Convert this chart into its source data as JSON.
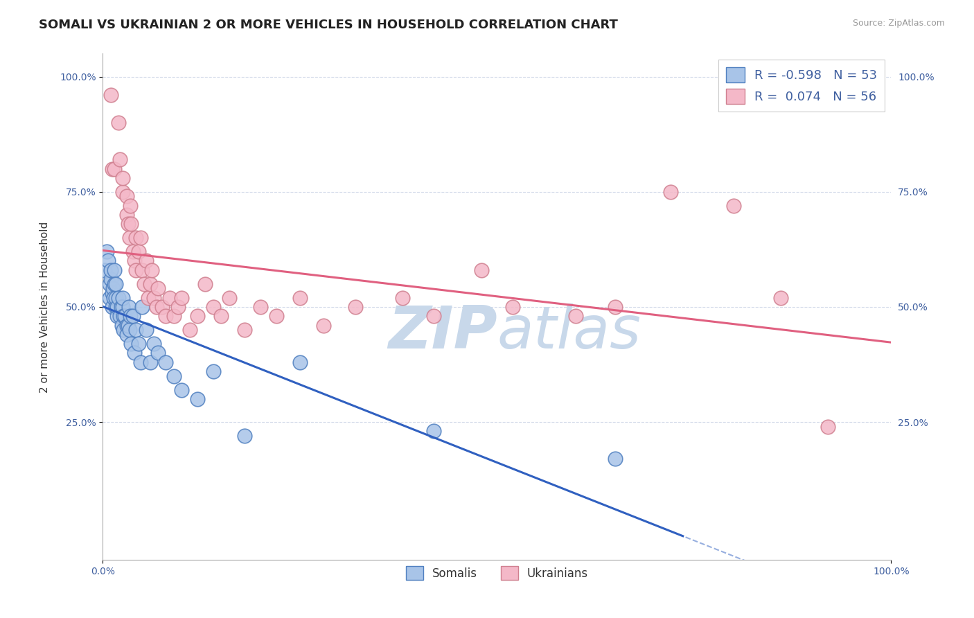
{
  "title": "SOMALI VS UKRAINIAN 2 OR MORE VEHICLES IN HOUSEHOLD CORRELATION CHART",
  "source": "Source: ZipAtlas.com",
  "ylabel": "2 or more Vehicles in Household",
  "xlim": [
    0,
    1.0
  ],
  "ylim": [
    -0.05,
    1.05
  ],
  "xtick_positions": [
    0.0,
    1.0
  ],
  "xtick_labels": [
    "0.0%",
    "100.0%"
  ],
  "ytick_positions": [
    0.25,
    0.5,
    0.75,
    1.0
  ],
  "ytick_labels": [
    "25.0%",
    "50.0%",
    "75.0%",
    "100.0%"
  ],
  "legend_blue_r": "-0.598",
  "legend_blue_n": "53",
  "legend_pink_r": "0.074",
  "legend_pink_n": "56",
  "blue_fill": "#a8c4e8",
  "blue_edge": "#5080c0",
  "pink_fill": "#f4b8c8",
  "pink_edge": "#d08090",
  "blue_line_color": "#3060c0",
  "pink_line_color": "#e06080",
  "watermark_color": "#c8d8ea",
  "background_color": "#ffffff",
  "grid_color": "#d0d8e8",
  "title_fontsize": 13,
  "axis_label_fontsize": 11,
  "tick_fontsize": 10,
  "somali_x": [
    0.002,
    0.005,
    0.007,
    0.008,
    0.008,
    0.01,
    0.01,
    0.012,
    0.012,
    0.013,
    0.014,
    0.015,
    0.015,
    0.016,
    0.016,
    0.016,
    0.018,
    0.018,
    0.02,
    0.022,
    0.023,
    0.024,
    0.025,
    0.025,
    0.026,
    0.026,
    0.028,
    0.03,
    0.03,
    0.032,
    0.033,
    0.034,
    0.035,
    0.036,
    0.038,
    0.04,
    0.042,
    0.045,
    0.048,
    0.05,
    0.055,
    0.06,
    0.065,
    0.07,
    0.08,
    0.09,
    0.1,
    0.12,
    0.14,
    0.18,
    0.25,
    0.42,
    0.65
  ],
  "somali_y": [
    0.58,
    0.62,
    0.6,
    0.55,
    0.52,
    0.56,
    0.58,
    0.53,
    0.5,
    0.54,
    0.52,
    0.58,
    0.55,
    0.5,
    0.52,
    0.55,
    0.48,
    0.5,
    0.52,
    0.48,
    0.5,
    0.46,
    0.5,
    0.52,
    0.48,
    0.45,
    0.48,
    0.46,
    0.44,
    0.46,
    0.5,
    0.45,
    0.48,
    0.42,
    0.48,
    0.4,
    0.45,
    0.42,
    0.38,
    0.5,
    0.45,
    0.38,
    0.42,
    0.4,
    0.38,
    0.35,
    0.32,
    0.3,
    0.36,
    0.22,
    0.38,
    0.23,
    0.17
  ],
  "ukrainian_x": [
    0.01,
    0.012,
    0.015,
    0.02,
    0.022,
    0.025,
    0.025,
    0.03,
    0.03,
    0.032,
    0.034,
    0.035,
    0.036,
    0.038,
    0.04,
    0.042,
    0.042,
    0.045,
    0.048,
    0.05,
    0.052,
    0.055,
    0.058,
    0.06,
    0.062,
    0.065,
    0.068,
    0.07,
    0.075,
    0.08,
    0.085,
    0.09,
    0.095,
    0.1,
    0.11,
    0.12,
    0.13,
    0.14,
    0.15,
    0.16,
    0.18,
    0.2,
    0.22,
    0.25,
    0.28,
    0.32,
    0.38,
    0.42,
    0.48,
    0.52,
    0.6,
    0.65,
    0.72,
    0.8,
    0.86,
    0.92
  ],
  "ukrainian_y": [
    0.96,
    0.8,
    0.8,
    0.9,
    0.82,
    0.75,
    0.78,
    0.7,
    0.74,
    0.68,
    0.65,
    0.72,
    0.68,
    0.62,
    0.6,
    0.65,
    0.58,
    0.62,
    0.65,
    0.58,
    0.55,
    0.6,
    0.52,
    0.55,
    0.58,
    0.52,
    0.5,
    0.54,
    0.5,
    0.48,
    0.52,
    0.48,
    0.5,
    0.52,
    0.45,
    0.48,
    0.55,
    0.5,
    0.48,
    0.52,
    0.45,
    0.5,
    0.48,
    0.52,
    0.46,
    0.5,
    0.52,
    0.48,
    0.58,
    0.5,
    0.48,
    0.5,
    0.75,
    0.72,
    0.52,
    0.24
  ]
}
